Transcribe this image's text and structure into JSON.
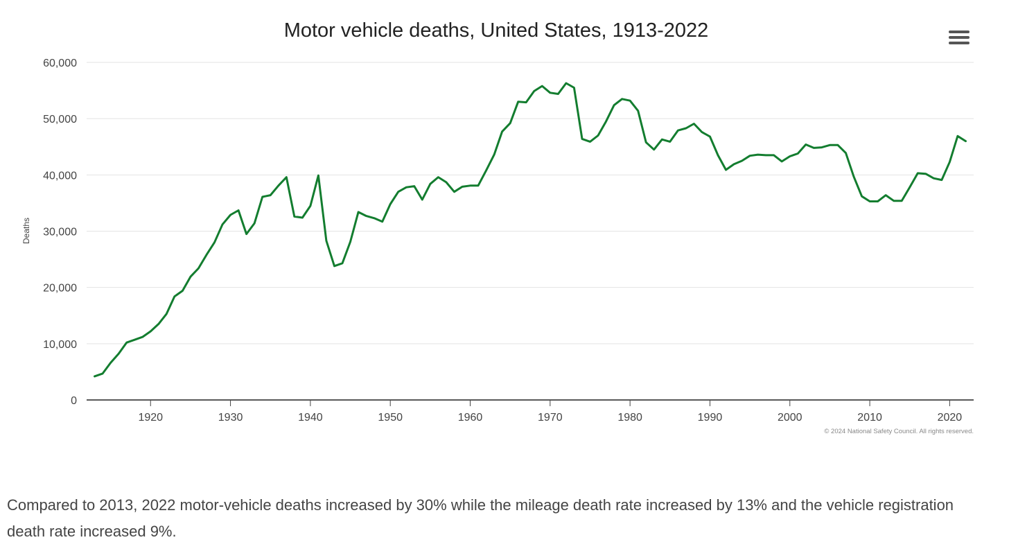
{
  "chart_data": {
    "type": "line",
    "title": "Motor vehicle deaths, United States, 1913-2022",
    "ylabel": "Deaths",
    "xlabel": "",
    "xlim": [
      1912,
      2023
    ],
    "ylim": [
      0,
      60000
    ],
    "x_ticks": [
      1920,
      1930,
      1940,
      1950,
      1960,
      1970,
      1980,
      1990,
      2000,
      2010,
      2020
    ],
    "y_ticks": [
      0,
      10000,
      20000,
      30000,
      40000,
      50000,
      60000
    ],
    "y_tick_labels": [
      "0",
      "10,000",
      "20,000",
      "30,000",
      "40,000",
      "50,000",
      "60,000"
    ],
    "grid": true,
    "line_color": "#137d2f",
    "credit": "© 2024 National Safety Council. All rights reserved.",
    "series": [
      {
        "x": [
          1913,
          1914,
          1915,
          1916,
          1917,
          1918,
          1919,
          1920,
          1921,
          1922,
          1923,
          1924,
          1925,
          1926,
          1927,
          1928,
          1929,
          1930,
          1931,
          1932,
          1933,
          1934,
          1935,
          1936,
          1937,
          1938,
          1939,
          1940,
          1941,
          1942,
          1943,
          1944,
          1945,
          1946,
          1947,
          1948,
          1949,
          1950,
          1951,
          1952,
          1953,
          1954,
          1955,
          1956,
          1957,
          1958,
          1959,
          1960,
          1961,
          1962,
          1963,
          1964,
          1965,
          1966,
          1967,
          1968,
          1969,
          1970,
          1971,
          1972,
          1973,
          1974,
          1975,
          1976,
          1977,
          1978,
          1979,
          1980,
          1981,
          1982,
          1983,
          1984,
          1985,
          1986,
          1987,
          1988,
          1989,
          1990,
          1991,
          1992,
          1993,
          1994,
          1995,
          1996,
          1997,
          1998,
          1999,
          2000,
          2001,
          2002,
          2003,
          2004,
          2005,
          2006,
          2007,
          2008,
          2009,
          2010,
          2011,
          2012,
          2013,
          2014,
          2015,
          2016,
          2017,
          2018,
          2019,
          2020,
          2021,
          2022
        ],
        "values": [
          4200,
          4700,
          6600,
          8200,
          10200,
          10700,
          11200,
          12200,
          13500,
          15300,
          18400,
          19400,
          21900,
          23400,
          25800,
          28000,
          31200,
          32900,
          33700,
          29500,
          31400,
          36100,
          36400,
          38100,
          39600,
          32600,
          32400,
          34500,
          39900,
          28300,
          23800,
          24300,
          28100,
          33400,
          32700,
          32300,
          31700,
          34800,
          37000,
          37800,
          38000,
          35600,
          38400,
          39600,
          38700,
          37000,
          37900,
          38100,
          38100,
          40800,
          43600,
          47700,
          49200,
          53000,
          52900,
          54900,
          55800,
          54600,
          54400,
          56300,
          55500,
          46400,
          45900,
          47000,
          49500,
          52400,
          53500,
          53200,
          51400,
          45800,
          44500,
          46300,
          45900,
          47900,
          48300,
          49100,
          47600,
          46800,
          43500,
          40900,
          41900,
          42500,
          43400,
          43600,
          43500,
          43500,
          42400,
          43300,
          43800,
          45400,
          44800,
          44900,
          45300,
          45300,
          43900,
          39700,
          36200,
          35300,
          35300,
          36400,
          35400,
          35400,
          37800,
          40300,
          40200,
          39400,
          39100,
          42300,
          46900,
          46000
        ]
      }
    ]
  },
  "caption": "Compared to 2013, 2022 motor-vehicle deaths increased by 30% while the mileage death rate increased by 13% and the vehicle registration death rate increased 9%.",
  "icons": {
    "menu": "hamburger-menu-icon"
  }
}
